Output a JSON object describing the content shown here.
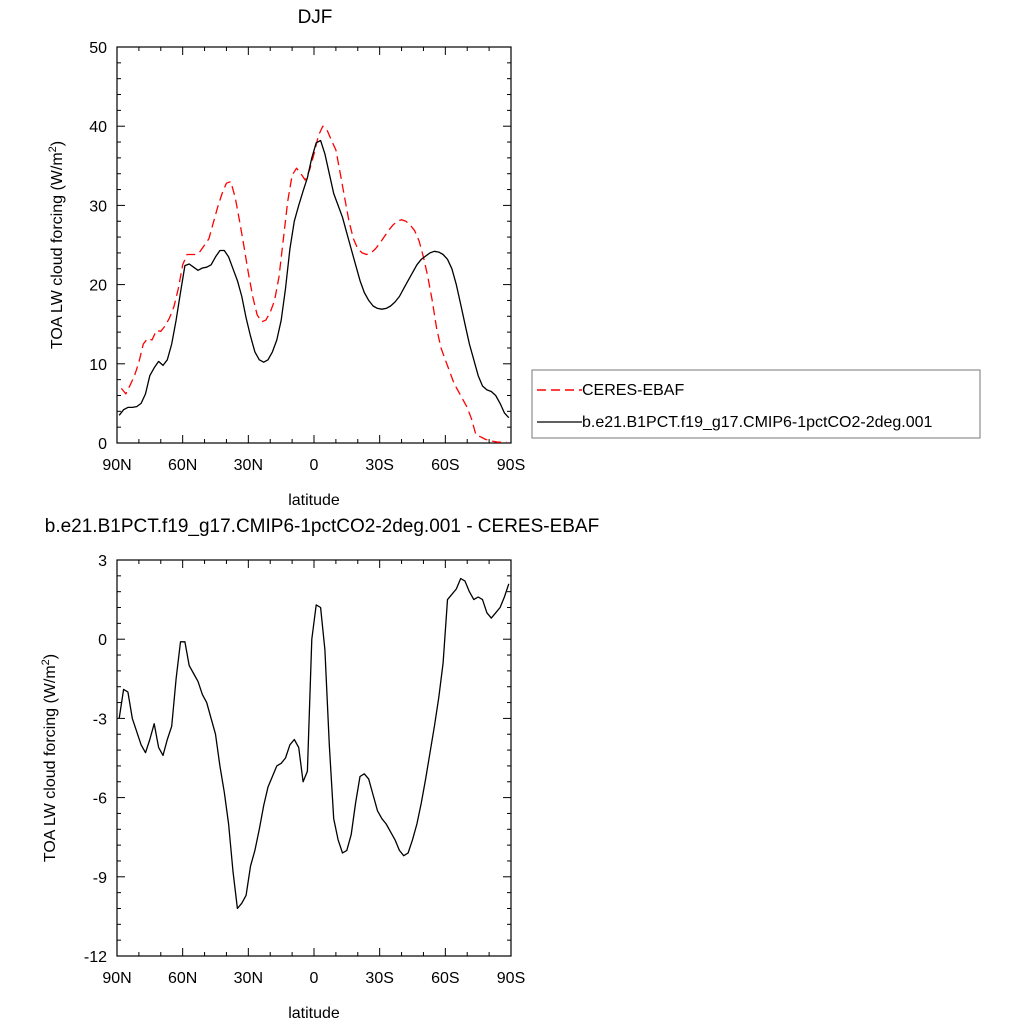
{
  "chart_data": [
    {
      "type": "line",
      "title": "DJF",
      "xlabel": "latitude",
      "ylabel": "TOA LW cloud forcing (W/m2)",
      "xlim": [
        90,
        -90
      ],
      "ylim": [
        0,
        50
      ],
      "x_ticks": [
        90,
        60,
        30,
        0,
        -30,
        -60,
        -90
      ],
      "x_tick_labels": [
        "90N",
        "60N",
        "30N",
        "0",
        "30S",
        "60S",
        "90S"
      ],
      "y_ticks": [
        0,
        10,
        20,
        30,
        40,
        50
      ],
      "y_tick_labels": [
        "0",
        "10",
        "20",
        "30",
        "40",
        "50"
      ],
      "legend_position": "right",
      "series": [
        {
          "name": "CERES-EBAF",
          "color": "#ff0000",
          "dash": "dashed",
          "x": [
            88,
            86,
            84,
            82,
            80,
            78,
            76,
            74,
            72,
            70,
            68,
            66,
            64,
            62,
            60,
            58,
            56,
            54,
            52,
            50,
            48,
            46,
            44,
            42,
            40,
            38,
            36,
            34,
            32,
            30,
            28,
            26,
            24,
            22,
            20,
            18,
            16,
            14,
            12,
            10,
            8,
            6,
            4,
            2,
            0,
            -2,
            -4,
            -6,
            -8,
            -10,
            -12,
            -14,
            -16,
            -18,
            -20,
            -22,
            -24,
            -26,
            -28,
            -30,
            -32,
            -34,
            -36,
            -38,
            -40,
            -42,
            -44,
            -46,
            -48,
            -50,
            -52,
            -54,
            -56,
            -58,
            -60,
            -62,
            -64,
            -66,
            -68,
            -70,
            -72,
            -74,
            -76,
            -78,
            -80,
            -82,
            -84,
            -86,
            -88
          ],
          "y": [
            6.9,
            6.2,
            7.3,
            8.5,
            10.2,
            12.5,
            13.2,
            13.0,
            14.2,
            14.1,
            14.8,
            15.8,
            17.2,
            19.5,
            22.5,
            23.8,
            23.8,
            23.8,
            24.2,
            25.0,
            25.8,
            27.8,
            29.8,
            31.5,
            32.8,
            33.0,
            31.0,
            28.0,
            24.8,
            21.5,
            18.5,
            16.2,
            15.3,
            15.5,
            16.5,
            18.0,
            21.0,
            25.8,
            30.5,
            33.8,
            34.7,
            34.0,
            33.2,
            34.5,
            36.5,
            38.8,
            40.0,
            39.5,
            38.2,
            37.0,
            34.0,
            31.0,
            28.0,
            25.8,
            24.5,
            24.0,
            23.8,
            24.0,
            24.5,
            25.2,
            26.0,
            26.8,
            27.5,
            28.0,
            28.2,
            28.0,
            27.5,
            26.8,
            25.5,
            23.5,
            21.0,
            18.0,
            14.5,
            12.0,
            10.5,
            9.0,
            7.5,
            6.5,
            5.5,
            4.5,
            3.0,
            1.0,
            0.8,
            0.5,
            0.3,
            0.2,
            0.1,
            0.1,
            0.1
          ],
          "ydraw_note": ""
        },
        {
          "name": "b.e21.B1PCT.f19_g17.CMIP6-1pctCO2-2deg.001",
          "color": "#000000",
          "dash": "solid",
          "x": [
            89,
            87,
            85,
            83,
            81,
            79,
            77,
            75,
            73,
            71,
            69,
            67,
            65,
            63,
            61,
            59,
            57,
            55,
            53,
            51,
            49,
            47,
            45,
            43,
            41,
            39,
            37,
            35,
            33,
            31,
            29,
            27,
            25,
            23,
            21,
            19,
            17,
            15,
            13,
            11,
            9,
            7,
            5,
            3,
            1,
            -1,
            -3,
            -5,
            -7,
            -9,
            -11,
            -13,
            -15,
            -17,
            -19,
            -21,
            -23,
            -25,
            -27,
            -29,
            -31,
            -33,
            -35,
            -37,
            -39,
            -41,
            -43,
            -45,
            -47,
            -49,
            -51,
            -53,
            -55,
            -57,
            -59,
            -61,
            -63,
            -65,
            -67,
            -69,
            -71,
            -73,
            -75,
            -77,
            -79,
            -81,
            -83,
            -85,
            -87,
            -89
          ],
          "y": [
            3.5,
            4.2,
            4.5,
            4.5,
            4.6,
            5.0,
            6.2,
            8.5,
            9.5,
            10.3,
            9.8,
            10.5,
            12.5,
            15.5,
            19.0,
            22.4,
            22.6,
            22.2,
            21.8,
            22.1,
            22.2,
            22.5,
            23.5,
            24.3,
            24.3,
            23.5,
            22.0,
            20.5,
            18.5,
            15.8,
            13.5,
            11.5,
            10.5,
            10.2,
            10.5,
            11.5,
            13.0,
            15.5,
            19.5,
            24.5,
            28.0,
            30.0,
            31.8,
            33.5,
            36.0,
            37.9,
            38.2,
            36.5,
            34.0,
            31.5,
            30.0,
            28.5,
            26.5,
            24.5,
            22.5,
            20.5,
            19.0,
            18.0,
            17.3,
            17.0,
            16.9,
            17.0,
            17.3,
            17.8,
            18.5,
            19.5,
            20.5,
            21.5,
            22.5,
            23.2,
            23.6,
            24.0,
            24.2,
            24.1,
            23.8,
            23.2,
            22.0,
            20.0,
            17.5,
            15.0,
            12.5,
            10.5,
            8.5,
            7.2,
            6.7,
            6.5,
            6.0,
            5.0,
            3.8,
            3.2
          ]
        }
      ]
    },
    {
      "type": "line",
      "title": "b.e21.B1PCT.f19_g17.CMIP6-1pctCO2-2deg.001 - CERES-EBAF",
      "xlabel": "latitude",
      "ylabel": "TOA LW cloud forcing (W/m2)",
      "xlim": [
        90,
        -90
      ],
      "ylim": [
        -12,
        3
      ],
      "x_ticks": [
        90,
        60,
        30,
        0,
        -30,
        -60,
        -90
      ],
      "x_tick_labels": [
        "90N",
        "60N",
        "30N",
        "0",
        "30S",
        "60S",
        "90S"
      ],
      "y_ticks": [
        -12,
        -9,
        -6,
        -3,
        0,
        3
      ],
      "y_tick_labels": [
        "-12",
        "-9",
        "-6",
        "-3",
        "0",
        "3"
      ],
      "series": [
        {
          "color": "#000000",
          "dash": "solid",
          "x": [
            89,
            87,
            85,
            83,
            81,
            79,
            77,
            75,
            73,
            71,
            69,
            67,
            65,
            63,
            61,
            59,
            57,
            55,
            53,
            51,
            49,
            47,
            45,
            43,
            41,
            39,
            37,
            35,
            33,
            31,
            29,
            27,
            25,
            23,
            21,
            19,
            17,
            15,
            13,
            11,
            9,
            7,
            5,
            3,
            1,
            -1,
            -3,
            -5,
            -7,
            -9,
            -11,
            -13,
            -15,
            -17,
            -19,
            -21,
            -23,
            -25,
            -27,
            -29,
            -31,
            -33,
            -35,
            -37,
            -39,
            -41,
            -43,
            -45,
            -47,
            -49,
            -51,
            -53,
            -55,
            -57,
            -59,
            -61,
            -63,
            -65,
            -67,
            -69,
            -71,
            -73,
            -75,
            -77,
            -79,
            -81,
            -83,
            -85,
            -87,
            -89
          ],
          "y": [
            -3.0,
            -1.9,
            -2.0,
            -3.0,
            -3.5,
            -4.0,
            -4.3,
            -3.8,
            -3.2,
            -4.1,
            -4.4,
            -3.8,
            -3.3,
            -1.5,
            -0.1,
            -0.1,
            -1.0,
            -1.3,
            -1.6,
            -2.1,
            -2.4,
            -3.0,
            -3.6,
            -4.8,
            -5.8,
            -7.0,
            -8.8,
            -10.2,
            -10.0,
            -9.7,
            -8.6,
            -8.0,
            -7.2,
            -6.3,
            -5.6,
            -5.2,
            -4.8,
            -4.7,
            -4.5,
            -4.0,
            -3.8,
            -4.1,
            -5.4,
            -5.0,
            0.0,
            1.3,
            1.2,
            -0.4,
            -4.0,
            -6.8,
            -7.6,
            -8.1,
            -8.0,
            -7.4,
            -6.2,
            -5.2,
            -5.1,
            -5.3,
            -5.9,
            -6.5,
            -6.8,
            -7.0,
            -7.3,
            -7.6,
            -8.0,
            -8.2,
            -8.1,
            -7.6,
            -7.0,
            -6.2,
            -5.3,
            -4.3,
            -3.3,
            -2.2,
            -0.9,
            1.5,
            1.7,
            1.9,
            2.3,
            2.2,
            1.8,
            1.5,
            1.6,
            1.5,
            1.0,
            0.8,
            1.0,
            1.2,
            1.6,
            2.1
          ]
        }
      ]
    }
  ]
}
